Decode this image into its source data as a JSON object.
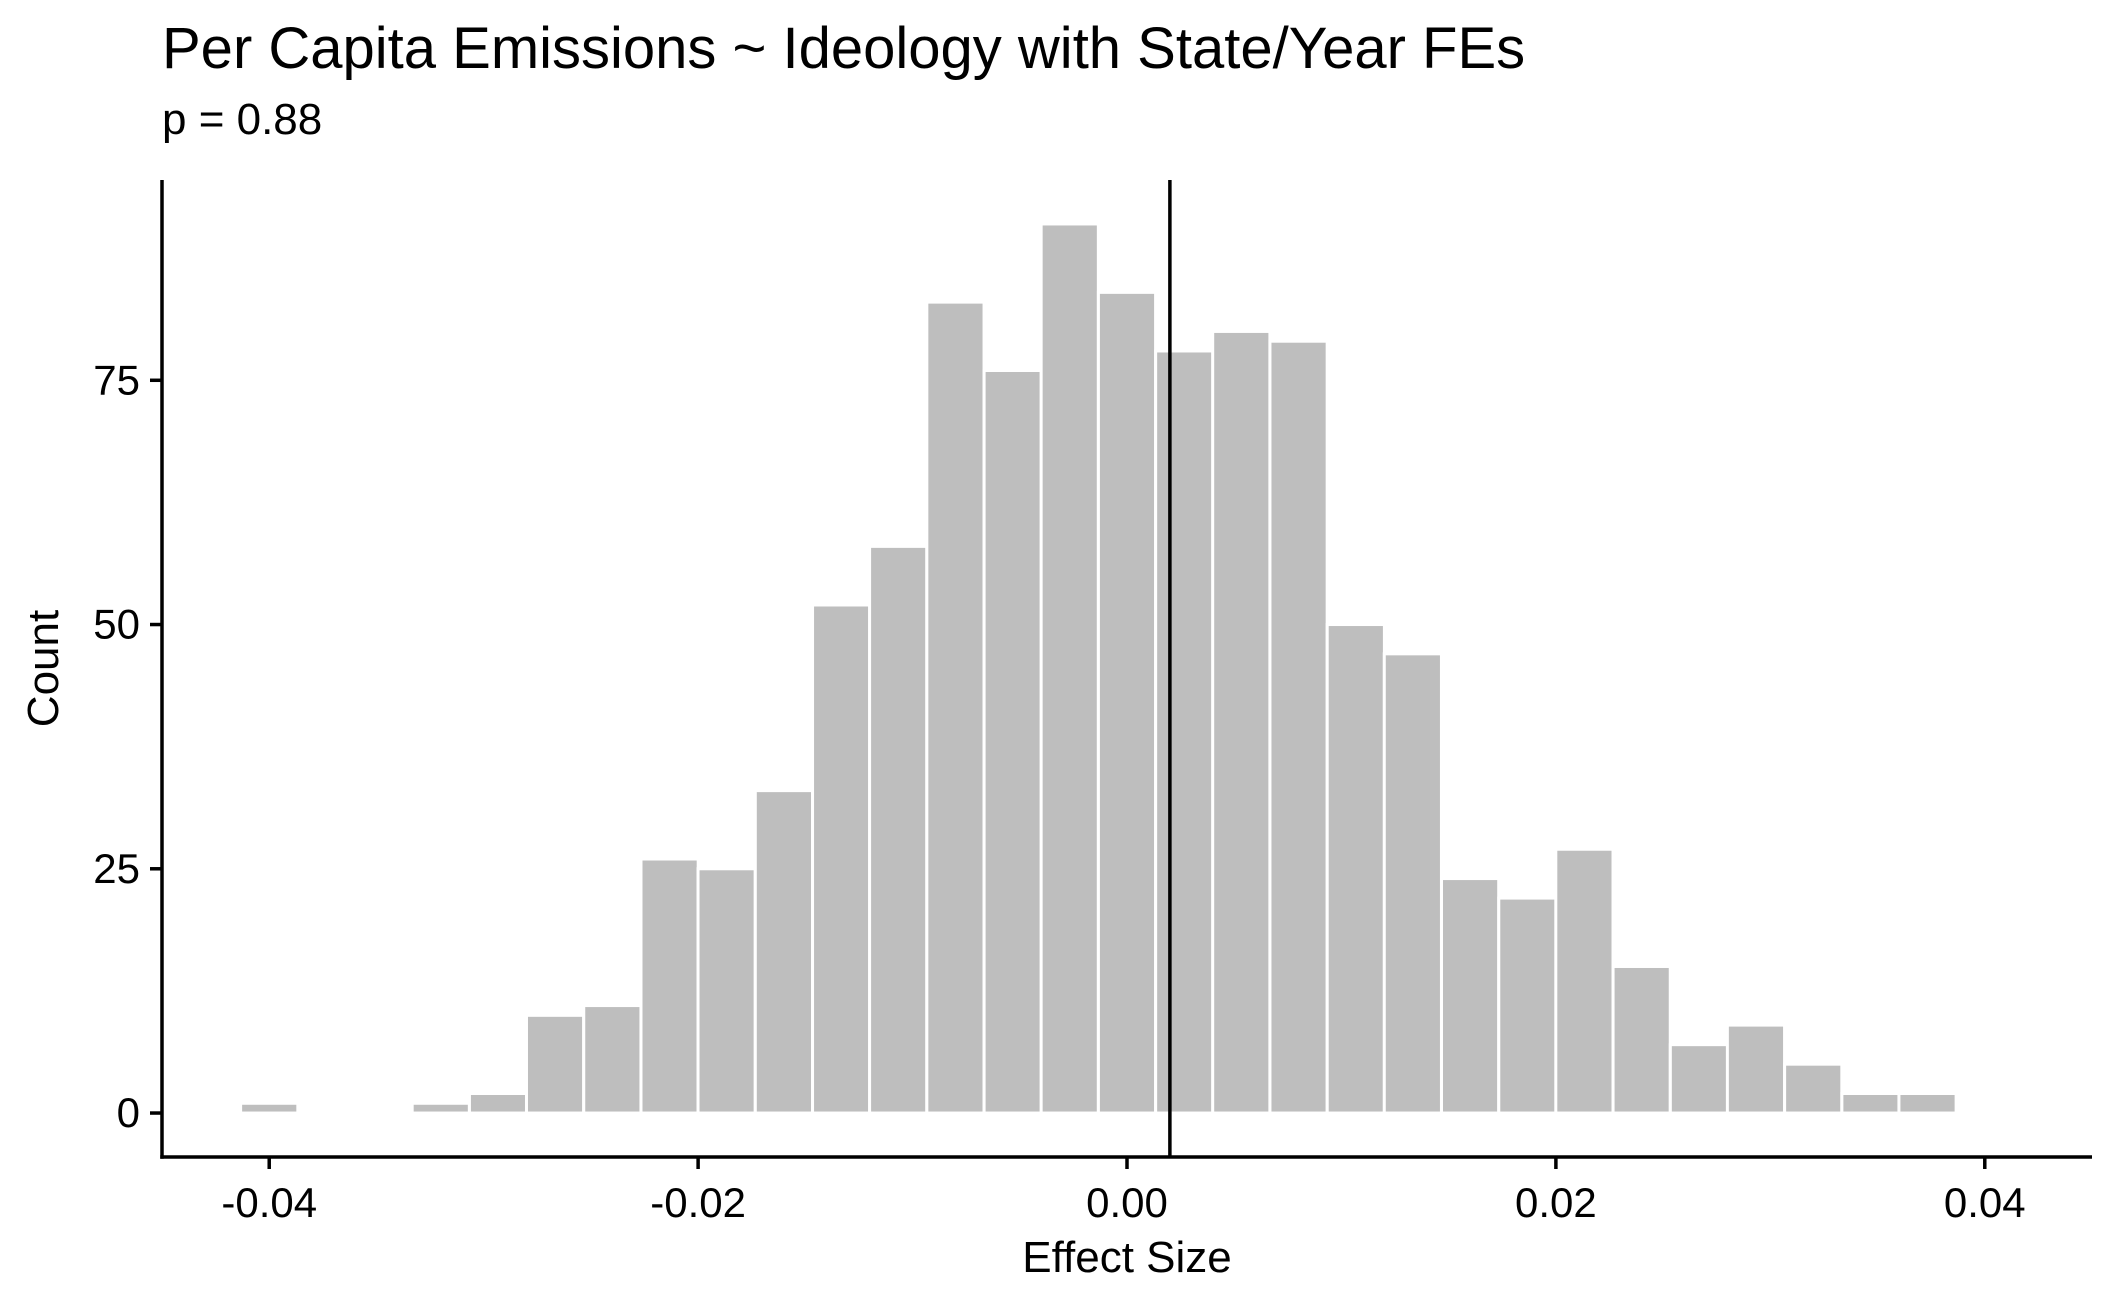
{
  "chart_data": {
    "type": "bar",
    "title": "Per Capita Emissions ~ Ideology with State/Year FEs",
    "subtitle": "p = 0.88",
    "xlabel": "Effect Size",
    "ylabel": "Count",
    "xlim": [
      -0.045,
      0.045
    ],
    "ylim": [
      -4.5,
      95.5
    ],
    "xticks": [
      -0.04,
      -0.02,
      0.0,
      0.02,
      0.04
    ],
    "xtick_labels": [
      "-0.04",
      "-0.02",
      "0.00",
      "0.02",
      "0.04"
    ],
    "yticks": [
      0,
      25,
      50,
      75
    ],
    "ytick_labels": [
      "0",
      "25",
      "50",
      "75"
    ],
    "bin_width": 0.002667,
    "bin_centers": [
      -0.04,
      -0.03733,
      -0.03467,
      -0.032,
      -0.02933,
      -0.02667,
      -0.024,
      -0.02133,
      -0.01867,
      -0.016,
      -0.01333,
      -0.01067,
      -0.008,
      -0.00533,
      -0.00267,
      0.0,
      0.00267,
      0.00533,
      0.008,
      0.01067,
      0.01333,
      0.016,
      0.01867,
      0.02133,
      0.024,
      0.02667,
      0.02933,
      0.032,
      0.03467,
      0.03733
    ],
    "counts": [
      1,
      0,
      0,
      1,
      2,
      10,
      11,
      26,
      25,
      33,
      52,
      58,
      83,
      76,
      91,
      84,
      78,
      80,
      79,
      50,
      47,
      24,
      22,
      27,
      15,
      7,
      9,
      5,
      2,
      2
    ],
    "vline_x": 0.002,
    "bar_color": "#bebebe",
    "bar_edge_color": "#ffffff",
    "grid": false,
    "legend": "none"
  }
}
